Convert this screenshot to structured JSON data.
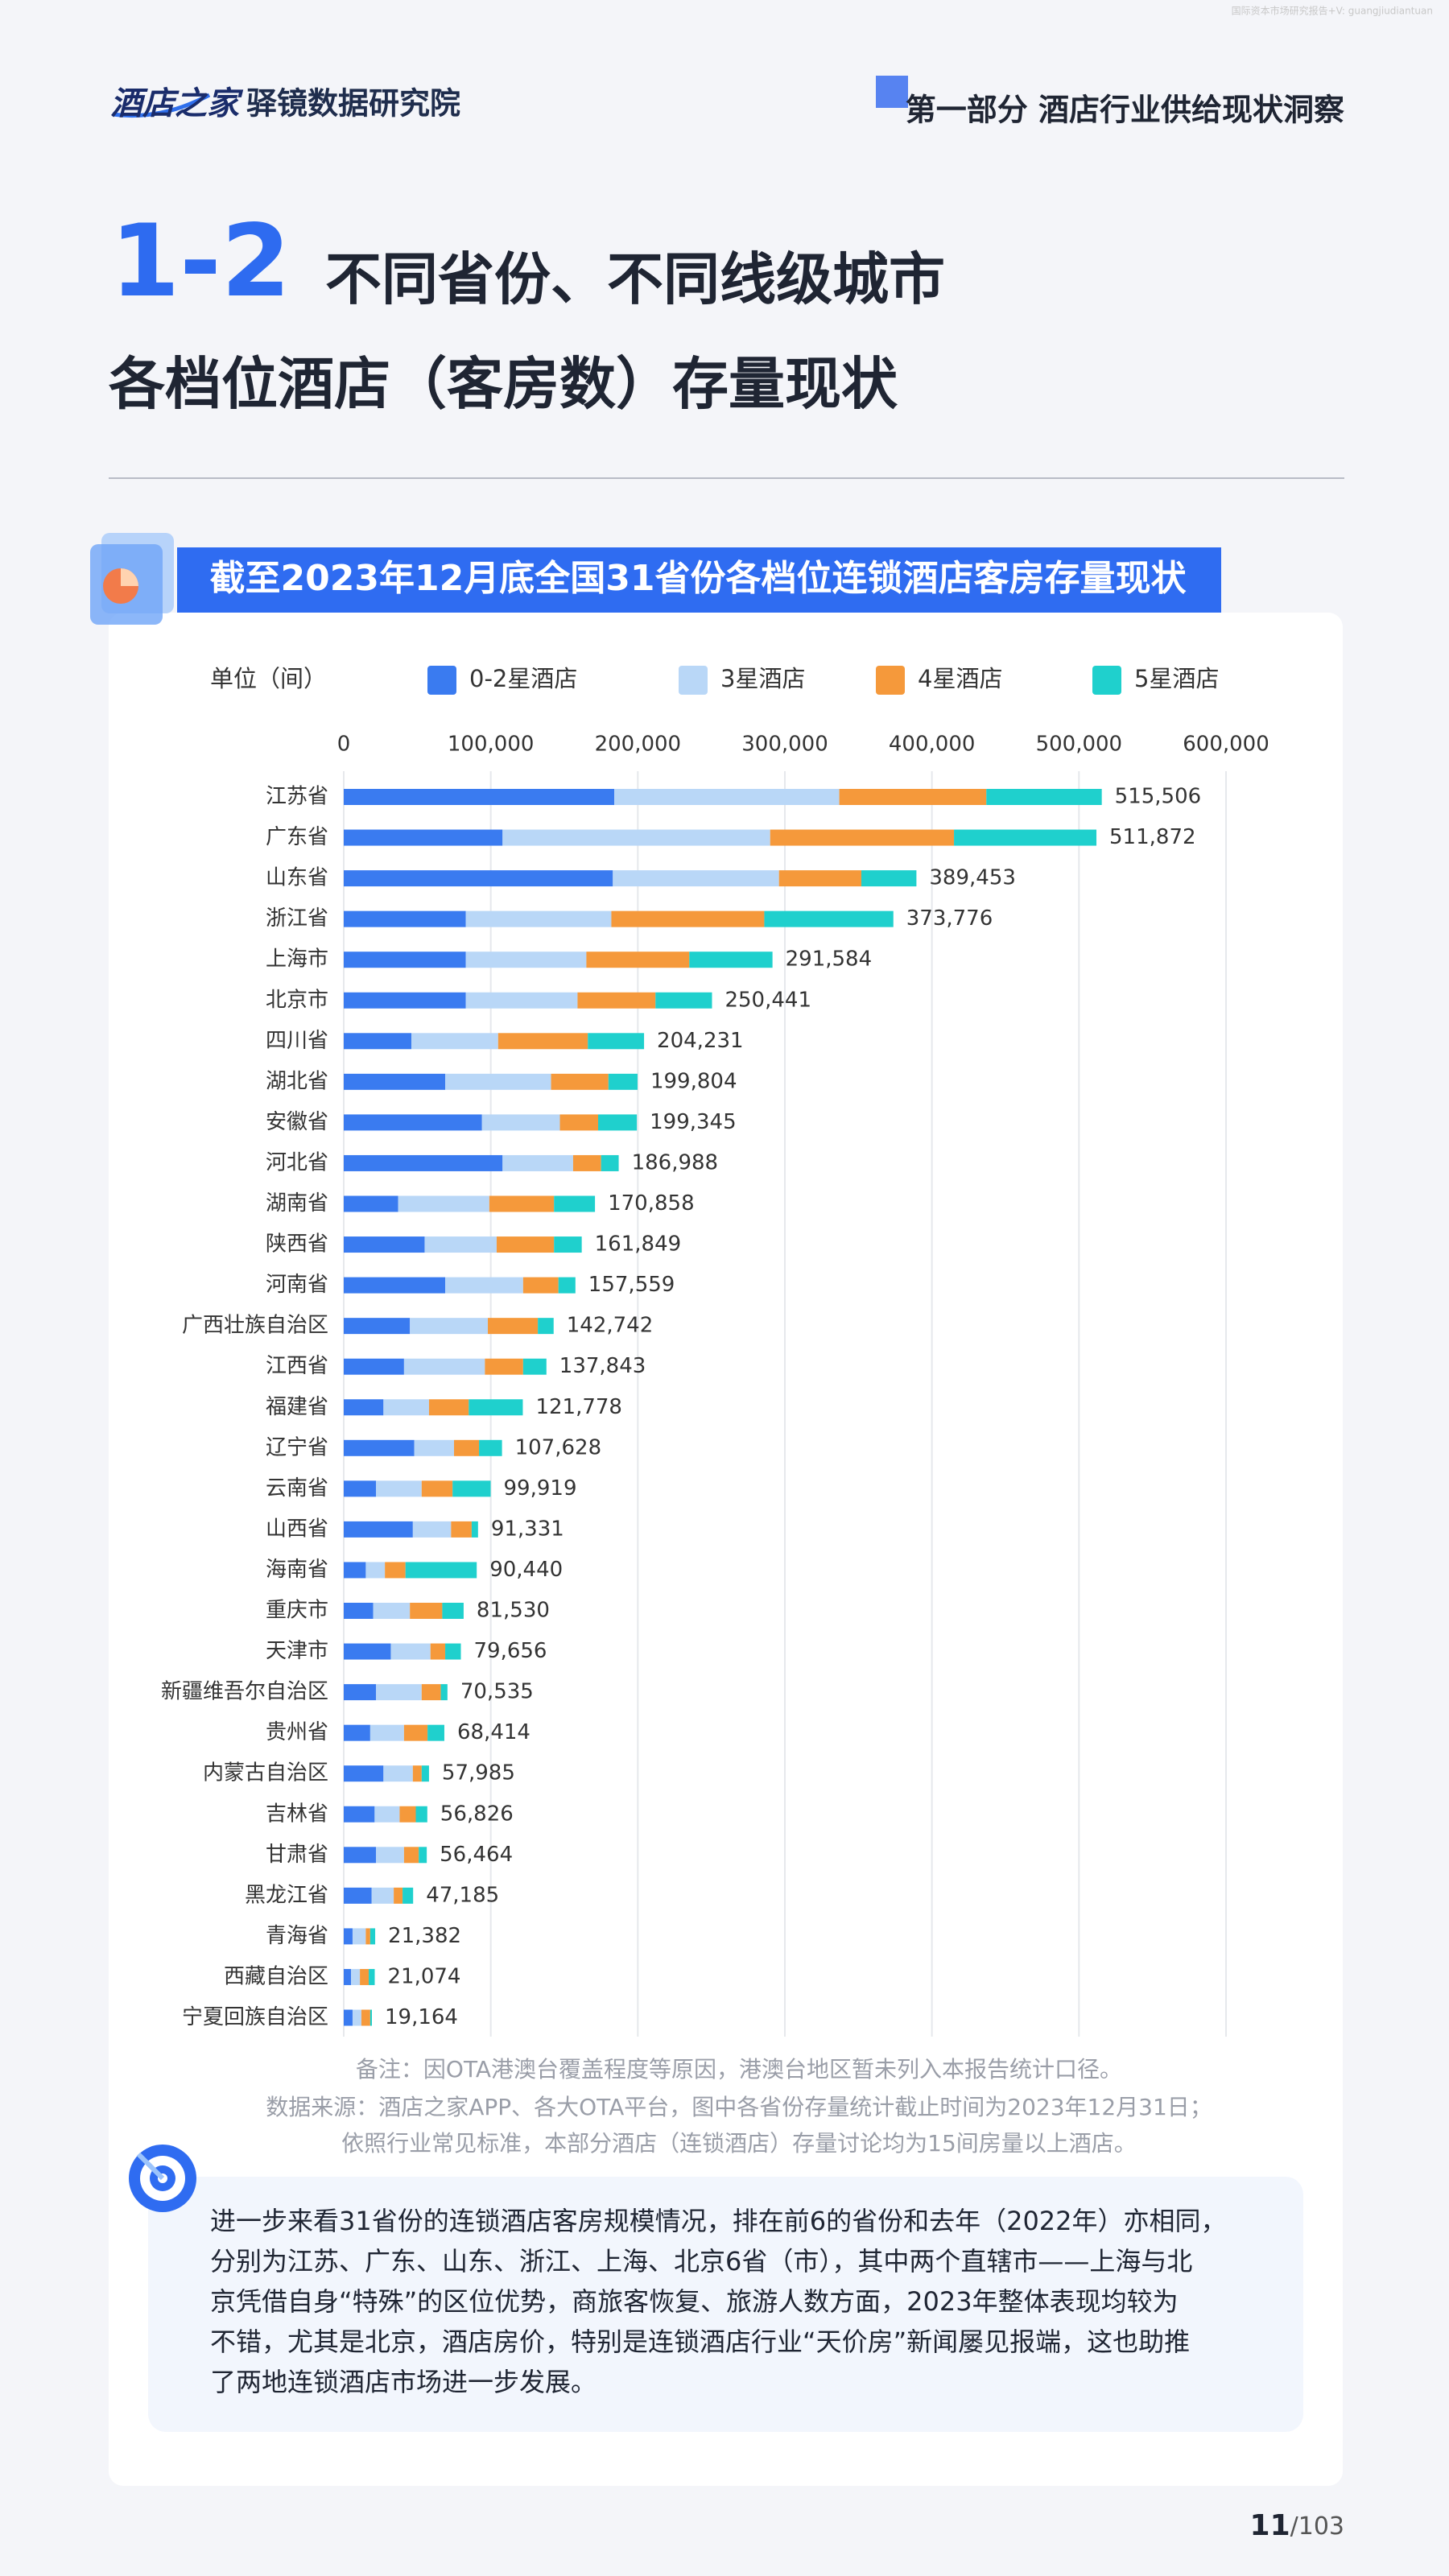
{
  "watermark": "国际资本市场研究报告+V: guangjiudiantuan",
  "header": {
    "logo": "酒店之家",
    "logo_sub": "驿镜数据研究院",
    "section": "第一部分 酒店行业供给现状洞察"
  },
  "title": {
    "number": "1-2",
    "line1": "不同省份、不同线级城市",
    "line2": "各档位酒店（客房数）存量现状"
  },
  "chart_data": {
    "type": "bar",
    "orientation": "horizontal",
    "stacked": true,
    "title": "截至2023年12月底全国31省份各档位连锁酒店客房存量现状",
    "unit_label": "单位（间）",
    "grid": true,
    "legend": "top",
    "categories": [
      "江苏省",
      "广东省",
      "山东省",
      "浙江省",
      "上海市",
      "北京市",
      "四川省",
      "湖北省",
      "安徽省",
      "河北省",
      "湖南省",
      "陕西省",
      "河南省",
      "广西壮族自治区",
      "江西省",
      "福建省",
      "辽宁省",
      "云南省",
      "山西省",
      "海南省",
      "重庆市",
      "天津市",
      "新疆维吾尔自治区",
      "贵州省",
      "内蒙古自治区",
      "吉林省",
      "甘肃省",
      "黑龙江省",
      "青海省",
      "西藏自治区",
      "宁夏回族自治区"
    ],
    "series": [
      {
        "name": "0-2星酒店",
        "color": "#3a7bf0",
        "values": [
          184000,
          108000,
          183000,
          83000,
          83000,
          83000,
          46000,
          69000,
          94000,
          108000,
          37000,
          55000,
          69000,
          45000,
          41000,
          27000,
          48000,
          22000,
          47000,
          15000,
          20000,
          32000,
          22000,
          18000,
          27000,
          21000,
          22000,
          19000,
          6000,
          5000,
          6000
        ]
      },
      {
        "name": "3星酒店",
        "color": "#b9d7f7",
        "values": [
          153000,
          182000,
          113000,
          99000,
          82000,
          76000,
          59000,
          72000,
          53000,
          48000,
          62000,
          49000,
          53000,
          53000,
          55000,
          31000,
          27000,
          31000,
          26000,
          13000,
          25000,
          27000,
          31000,
          23000,
          20000,
          17000,
          19000,
          15000,
          9000,
          6000,
          6000
        ]
      },
      {
        "name": "4星酒店",
        "color": "#f5993b",
        "values": [
          100000,
          125000,
          56000,
          104000,
          70000,
          53000,
          61000,
          39000,
          26000,
          19000,
          44000,
          39000,
          24000,
          34000,
          26000,
          27000,
          17000,
          21000,
          14000,
          14000,
          22000,
          10000,
          13000,
          16000,
          6000,
          11000,
          10000,
          6000,
          3000,
          6000,
          6000
        ]
      },
      {
        "name": "5星酒店",
        "color": "#1fd0cd",
        "values": [
          78506,
          96872,
          37453,
          87776,
          56584,
          38441,
          38231,
          19804,
          26345,
          11988,
          27858,
          18849,
          11559,
          10742,
          15843,
          36778,
          15628,
          25919,
          4331,
          48440,
          14530,
          10656,
          4535,
          11414,
          4985,
          7826,
          5464,
          7185,
          3382,
          4074,
          1164
        ]
      }
    ],
    "totals": [
      515506,
      511872,
      389453,
      373776,
      291584,
      250441,
      204231,
      199804,
      199345,
      186988,
      170858,
      161849,
      157559,
      142742,
      137843,
      121778,
      107628,
      99919,
      91331,
      90440,
      81530,
      79656,
      70535,
      68414,
      57985,
      56826,
      56464,
      47185,
      21382,
      21074,
      19164
    ],
    "total_labels": [
      "515,506",
      "511,872",
      "389,453",
      "373,776",
      "291,584",
      "250,441",
      "204,231",
      "199,804",
      "199,345",
      "186,988",
      "170,858",
      "161,849",
      "157,559",
      "142,742",
      "137,843",
      "121,778",
      "107,628",
      "99,919",
      "91,331",
      "90,440",
      "81,530",
      "79,656",
      "70,535",
      "68,414",
      "57,985",
      "56,826",
      "56,464",
      "47,185",
      "21,382",
      "21,074",
      "19,164"
    ],
    "xlim": [
      0,
      600000
    ],
    "xticks": [
      0,
      {
        "value": 100000,
        "label": "100,000"
      },
      {
        "value": 200000,
        "label": "200,000"
      },
      {
        "value": 300000,
        "label": "300,000"
      },
      {
        "value": 400000,
        "label": "400,000"
      },
      {
        "value": 500000,
        "label": "500,000"
      },
      {
        "value": 600000,
        "label": "600,000"
      }
    ]
  },
  "notes": [
    "备注：因OTA港澳台覆盖程度等原因，港澳台地区暂未列入本报告统计口径。",
    "数据来源：酒店之家APP、各大OTA平台，图中各省份存量统计截止时间为2023年12月31日；",
    "依照行业常见标准，本部分酒店（连锁酒店）存量讨论均为15间房量以上酒店。"
  ],
  "paragraph": [
    "进一步来看31省份的连锁酒店客房规模情况，排在前6的省份和去年（2022年）亦相同，",
    "分别为江苏、广东、山东、浙江、上海、北京6省（市），其中两个直辖市——上海与北",
    "京凭借自身“特殊”的区位优势，商旅客恢复、旅游人数方面，2023年整体表现均较为",
    "不错，尤其是北京，酒店房价，特别是连锁酒店行业“天价房”新闻屡见报端，这也助推",
    "了两地连锁酒店市场进一步发展。"
  ],
  "page": {
    "current": "11",
    "total": "/103"
  }
}
